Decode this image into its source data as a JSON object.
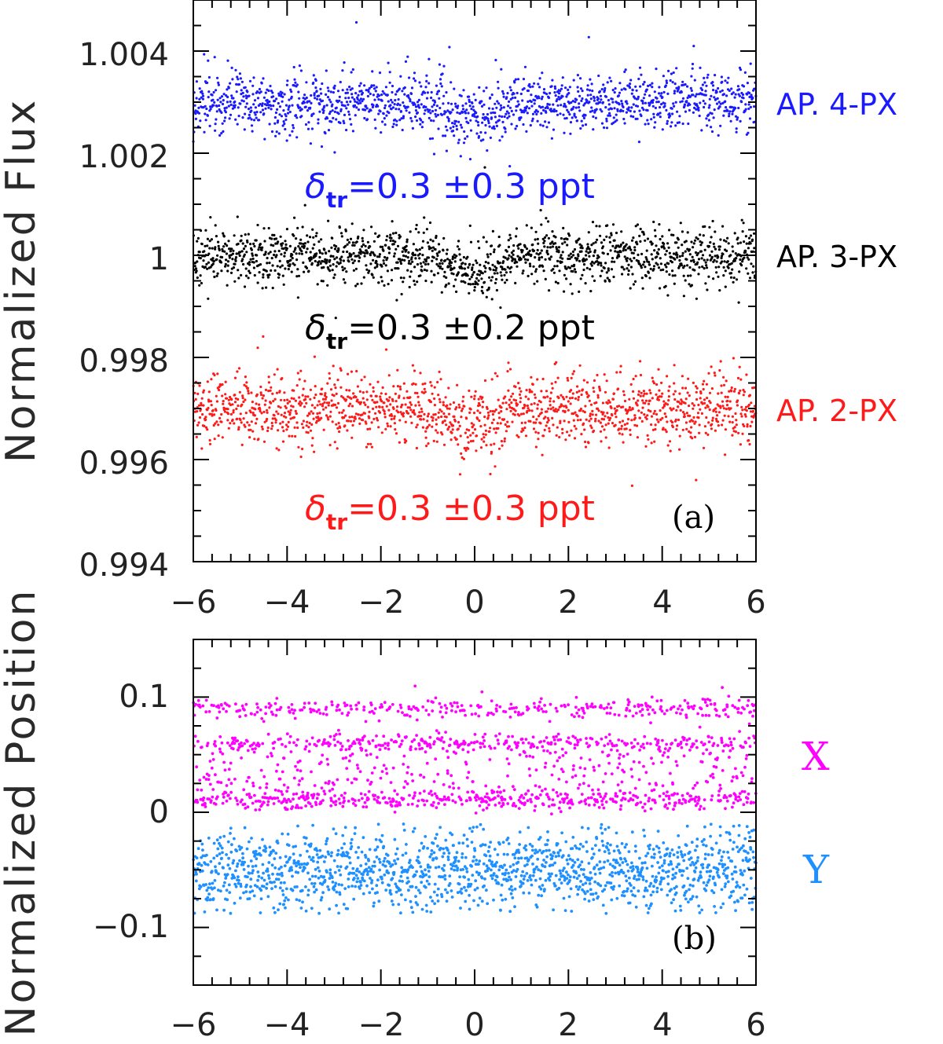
{
  "chart_data": [
    {
      "panel": "a",
      "type": "scatter",
      "title": "",
      "xlabel": "",
      "ylabel": "Normalized Flux",
      "xlim": [
        -6,
        6
      ],
      "ylim": [
        0.994,
        1.005
      ],
      "x_ticks": [
        -6,
        -4,
        -2,
        0,
        2,
        4,
        6
      ],
      "x_tick_labels": [
        "−6",
        "−4",
        "−2",
        "0",
        "2",
        "4",
        "6"
      ],
      "y_ticks": [
        0.994,
        0.996,
        0.998,
        1,
        1.002,
        1.004
      ],
      "y_tick_labels": [
        "0.994",
        "0.996",
        "0.998",
        "1",
        "1.002",
        "1.004"
      ],
      "panel_label": "(a)",
      "series": [
        {
          "name": "AP. 4-PX",
          "color": "#1a1aff",
          "baseline": 1.003,
          "scatter_sd": 0.00028,
          "transit_depth": 0.0003,
          "transit_center": 0,
          "transit_halfwidth": 0.8,
          "n_points": 1500,
          "annotation": {
            "symbol": "δ",
            "subscript": "tr",
            "text": "=0.3 ±0.3 ppt"
          }
        },
        {
          "name": "AP. 3-PX",
          "color": "#000000",
          "baseline": 1.0,
          "scatter_sd": 0.00028,
          "transit_depth": 0.0003,
          "transit_center": 0,
          "transit_halfwidth": 0.8,
          "n_points": 1500,
          "annotation": {
            "symbol": "δ",
            "subscript": "tr",
            "text": "=0.3 ±0.2 ppt"
          }
        },
        {
          "name": "AP. 2-PX",
          "color": "#ff1a1a",
          "baseline": 0.997,
          "scatter_sd": 0.00034,
          "transit_depth": 0.0003,
          "transit_center": 0,
          "transit_halfwidth": 0.8,
          "n_points": 1500,
          "annotation": {
            "symbol": "δ",
            "subscript": "tr",
            "text": "=0.3 ±0.3 ppt"
          }
        }
      ]
    },
    {
      "panel": "b",
      "type": "scatter",
      "title": "",
      "xlabel": "",
      "ylabel": "Normalized Position",
      "xlim": [
        -6,
        6
      ],
      "ylim": [
        -0.15,
        0.15
      ],
      "x_ticks": [
        -6,
        -4,
        -2,
        0,
        2,
        4,
        6
      ],
      "x_tick_labels": [
        "−6",
        "−4",
        "−2",
        "0",
        "2",
        "4",
        "6"
      ],
      "y_ticks": [
        -0.1,
        0,
        0.1
      ],
      "y_tick_labels": [
        "−0.1",
        "0",
        "0.1"
      ],
      "panel_label": "(b)",
      "series": [
        {
          "name": "X",
          "color": "#ff00ff",
          "levels": [
            0.01,
            0.035,
            0.06,
            0.09
          ],
          "band_sd": 0.004,
          "extremes": [
            0.0,
            0.11
          ],
          "n_points": 1500
        },
        {
          "name": "Y",
          "color": "#1e90ff",
          "center": -0.05,
          "scatter_sd": 0.017,
          "extremes": [
            -0.088,
            -0.01
          ],
          "n_points": 1500
        }
      ]
    }
  ]
}
